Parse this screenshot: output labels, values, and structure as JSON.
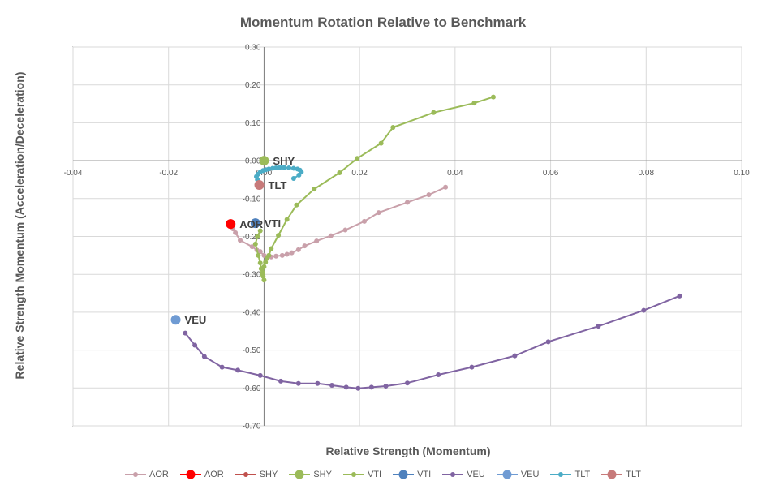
{
  "chart_data": {
    "type": "scatter",
    "title": "Momentum Rotation Relative to Benchmark",
    "xlabel": "Relative Strength (Momentum)",
    "ylabel": "Relative Strength Momentum (Acceleration/Deceleration)",
    "xlim": [
      -0.04,
      0.1
    ],
    "ylim": [
      -0.7,
      0.3
    ],
    "xticks": [
      "-0.04",
      "-0.02",
      "0.00",
      "0.02",
      "0.04",
      "0.06",
      "0.08",
      "0.10"
    ],
    "yticks": [
      "0.30",
      "0.20",
      "0.10",
      "0.00",
      "-0.10",
      "-0.20",
      "-0.30",
      "-0.40",
      "-0.50",
      "-0.60",
      "-0.70"
    ],
    "grid": true,
    "legend_position": "bottom",
    "series": [
      {
        "name": "AOR",
        "kind": "trail",
        "color": "#c9a0aa",
        "points": [
          [
            0.038,
            -0.07
          ],
          [
            0.0345,
            -0.09
          ],
          [
            0.03,
            -0.11
          ],
          [
            0.024,
            -0.137
          ],
          [
            0.021,
            -0.16
          ],
          [
            0.017,
            -0.183
          ],
          [
            0.014,
            -0.198
          ],
          [
            0.011,
            -0.212
          ],
          [
            0.0085,
            -0.225
          ],
          [
            0.0072,
            -0.235
          ],
          [
            0.0058,
            -0.243
          ],
          [
            0.0048,
            -0.247
          ],
          [
            0.0038,
            -0.25
          ],
          [
            0.0025,
            -0.252
          ],
          [
            0.0015,
            -0.254
          ],
          [
            0.0,
            -0.25
          ],
          [
            -0.0008,
            -0.24
          ],
          [
            -0.0015,
            -0.236
          ],
          [
            -0.0025,
            -0.227
          ],
          [
            -0.005,
            -0.21
          ],
          [
            -0.006,
            -0.19
          ],
          [
            -0.0065,
            -0.18
          ]
        ]
      },
      {
        "name": "AOR",
        "kind": "current",
        "color": "#ff0000",
        "points": [
          [
            -0.007,
            -0.167
          ]
        ]
      },
      {
        "name": "SHY",
        "kind": "trail",
        "color": "#c0504d",
        "points": [
          [
            0.0,
            0.0
          ]
        ]
      },
      {
        "name": "SHY",
        "kind": "current",
        "color": "#9bbb59",
        "points": [
          [
            0.0,
            0.0
          ]
        ]
      },
      {
        "name": "VTI",
        "kind": "trail",
        "color": "#9bbb59",
        "points": [
          [
            0.048,
            0.168
          ],
          [
            0.044,
            0.152
          ],
          [
            0.0355,
            0.127
          ],
          [
            0.027,
            0.088
          ],
          [
            0.0245,
            0.046
          ],
          [
            0.0195,
            0.006
          ],
          [
            0.0158,
            -0.032
          ],
          [
            0.0105,
            -0.075
          ],
          [
            0.0068,
            -0.117
          ],
          [
            0.0048,
            -0.155
          ],
          [
            0.003,
            -0.197
          ],
          [
            0.0015,
            -0.232
          ],
          [
            0.001,
            -0.25
          ],
          [
            0.0006,
            -0.258
          ],
          [
            0.0003,
            -0.268
          ],
          [
            0.0,
            -0.28
          ],
          [
            -0.0003,
            -0.295
          ],
          [
            -0.0002,
            -0.305
          ],
          [
            0.0,
            -0.315
          ],
          [
            -0.0003,
            -0.3
          ],
          [
            -0.0006,
            -0.285
          ],
          [
            -0.0008,
            -0.27
          ],
          [
            -0.0012,
            -0.25
          ],
          [
            -0.0018,
            -0.22
          ],
          [
            -0.0014,
            -0.2
          ],
          [
            -0.0008,
            -0.185
          ]
        ]
      },
      {
        "name": "VTI",
        "kind": "current",
        "color": "#4f81bd",
        "points": [
          [
            -0.0018,
            -0.165
          ]
        ]
      },
      {
        "name": "VEU",
        "kind": "trail",
        "color": "#8064a2",
        "points": [
          [
            0.087,
            -0.357
          ],
          [
            0.0795,
            -0.395
          ],
          [
            0.07,
            -0.437
          ],
          [
            0.0595,
            -0.478
          ],
          [
            0.0525,
            -0.515
          ],
          [
            0.0435,
            -0.545
          ],
          [
            0.0365,
            -0.565
          ],
          [
            0.03,
            -0.587
          ],
          [
            0.0255,
            -0.595
          ],
          [
            0.0225,
            -0.598
          ],
          [
            0.0197,
            -0.601
          ],
          [
            0.0172,
            -0.598
          ],
          [
            0.0142,
            -0.593
          ],
          [
            0.0112,
            -0.588
          ],
          [
            0.0072,
            -0.588
          ],
          [
            0.0035,
            -0.582
          ],
          [
            -0.0008,
            -0.567
          ],
          [
            -0.0055,
            -0.553
          ],
          [
            -0.0088,
            -0.545
          ],
          [
            -0.0125,
            -0.517
          ],
          [
            -0.0145,
            -0.487
          ],
          [
            -0.0165,
            -0.455
          ]
        ]
      },
      {
        "name": "VEU",
        "kind": "current",
        "color": "#6f9bd3",
        "points": [
          [
            -0.0185,
            -0.42
          ]
        ]
      },
      {
        "name": "TLT",
        "kind": "trail",
        "color": "#4bacc6",
        "points": [
          [
            0.0062,
            -0.047
          ],
          [
            0.0073,
            -0.038
          ],
          [
            0.0078,
            -0.03
          ],
          [
            0.0075,
            -0.025
          ],
          [
            0.007,
            -0.022
          ],
          [
            0.0062,
            -0.02
          ],
          [
            0.0052,
            -0.019
          ],
          [
            0.0042,
            -0.018
          ],
          [
            0.0033,
            -0.018
          ],
          [
            0.0025,
            -0.019
          ],
          [
            0.0018,
            -0.02
          ],
          [
            0.001,
            -0.022
          ],
          [
            0.0004,
            -0.024
          ],
          [
            -0.0002,
            -0.026
          ],
          [
            -0.0008,
            -0.03
          ],
          [
            -0.0013,
            -0.036
          ],
          [
            -0.0016,
            -0.042
          ],
          [
            -0.0014,
            -0.05
          ]
        ]
      },
      {
        "name": "TLT",
        "kind": "current",
        "color": "#c77a7a",
        "points": [
          [
            -0.001,
            -0.064
          ]
        ]
      }
    ],
    "point_labels": [
      {
        "text": "SHY",
        "x": 0.0,
        "y": 0.0
      },
      {
        "text": "TLT",
        "x": -0.001,
        "y": -0.064
      },
      {
        "text": "AOR",
        "x": -0.007,
        "y": -0.167
      },
      {
        "text": "VTI",
        "x": -0.0018,
        "y": -0.165
      },
      {
        "text": "VEU",
        "x": -0.0185,
        "y": -0.42
      }
    ]
  }
}
